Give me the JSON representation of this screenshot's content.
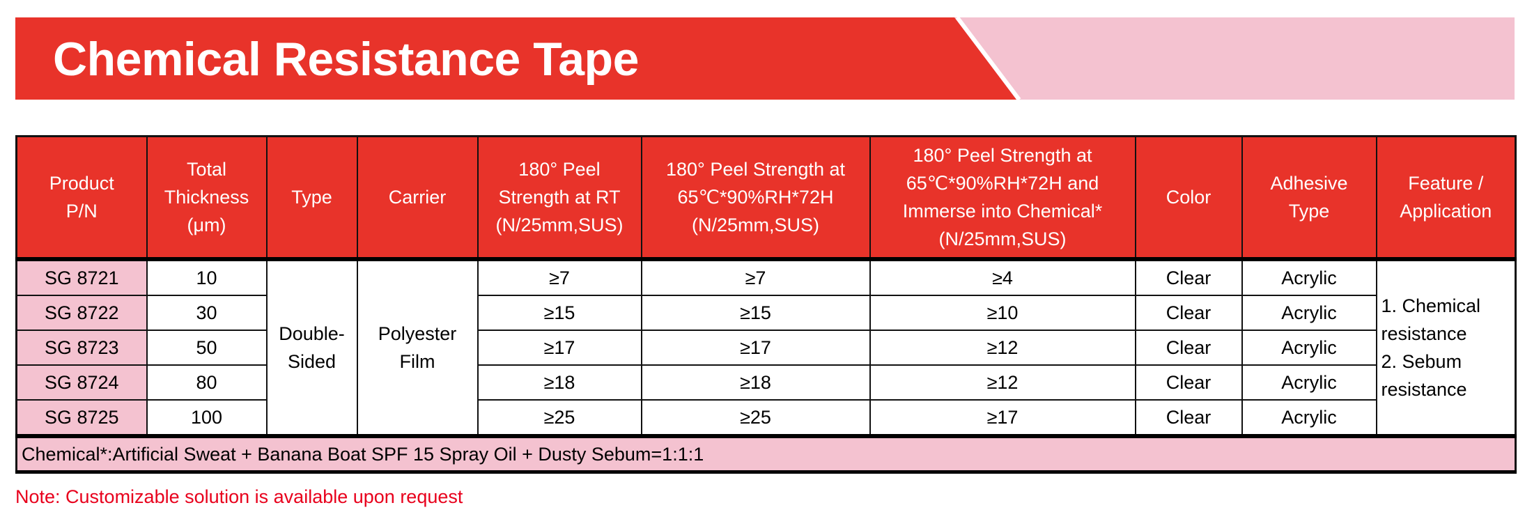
{
  "title": "Chemical Resistance Tape",
  "colors": {
    "brand_red": "#E8332A",
    "pink": "#F4C2D0",
    "note_red": "#E8001C"
  },
  "table": {
    "headers": [
      [
        "Product",
        "P/N"
      ],
      [
        "Total",
        "Thickness",
        "(μm)"
      ],
      [
        "Type"
      ],
      [
        "Carrier"
      ],
      [
        "180° Peel",
        "Strength at RT",
        "(N/25mm,SUS)"
      ],
      [
        "180° Peel Strength at",
        "65℃*90%RH*72H",
        "(N/25mm,SUS)"
      ],
      [
        "180° Peel Strength at",
        "65℃*90%RH*72H and",
        "Immerse into Chemical*",
        "(N/25mm,SUS)"
      ],
      [
        "Color"
      ],
      [
        "Adhesive",
        "Type"
      ],
      [
        "Feature /",
        "Application"
      ]
    ],
    "type": [
      "Double-",
      "Sided"
    ],
    "carrier": [
      "Polyester",
      "Film"
    ],
    "feature": [
      "1. Chemical",
      "resistance",
      "2. Sebum",
      "resistance"
    ],
    "rows": [
      {
        "pn": "SG 8721",
        "thickness": "10",
        "peel_rt": "≥7",
        "peel_humid": "≥7",
        "peel_chem": "≥4",
        "color": "Clear",
        "adhesive": "Acrylic"
      },
      {
        "pn": "SG 8722",
        "thickness": "30",
        "peel_rt": "≥15",
        "peel_humid": "≥15",
        "peel_chem": "≥10",
        "color": "Clear",
        "adhesive": "Acrylic"
      },
      {
        "pn": "SG 8723",
        "thickness": "50",
        "peel_rt": "≥17",
        "peel_humid": "≥17",
        "peel_chem": "≥12",
        "color": "Clear",
        "adhesive": "Acrylic"
      },
      {
        "pn": "SG 8724",
        "thickness": "80",
        "peel_rt": "≥18",
        "peel_humid": "≥18",
        "peel_chem": "≥12",
        "color": "Clear",
        "adhesive": "Acrylic"
      },
      {
        "pn": "SG 8725",
        "thickness": "100",
        "peel_rt": "≥25",
        "peel_humid": "≥25",
        "peel_chem": "≥17",
        "color": "Clear",
        "adhesive": "Acrylic"
      }
    ],
    "footnote": "Chemical*:Artificial Sweat + Banana Boat SPF 15 Spray Oil + Dusty Sebum=1:1:1"
  },
  "note": "Note: Customizable solution is available upon request"
}
